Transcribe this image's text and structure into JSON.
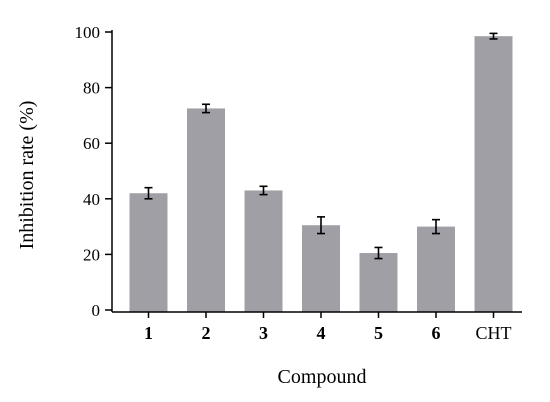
{
  "chart_data": {
    "type": "bar",
    "title": "",
    "xlabel": "Compound",
    "ylabel": "Inhibition rate (%)",
    "ylim": [
      0,
      100
    ],
    "yticks": [
      0,
      20,
      40,
      60,
      80,
      100
    ],
    "categories": [
      "1",
      "2",
      "3",
      "4",
      "5",
      "6",
      "CHT"
    ],
    "category_bold": [
      true,
      true,
      true,
      true,
      true,
      true,
      false
    ],
    "values": [
      42,
      72.5,
      43,
      30.5,
      20.5,
      30,
      98.5
    ],
    "errors": [
      2,
      1.5,
      1.5,
      3,
      2,
      2.5,
      1
    ],
    "bar_color": "#a09fa5",
    "grid": false,
    "legend": "none"
  }
}
